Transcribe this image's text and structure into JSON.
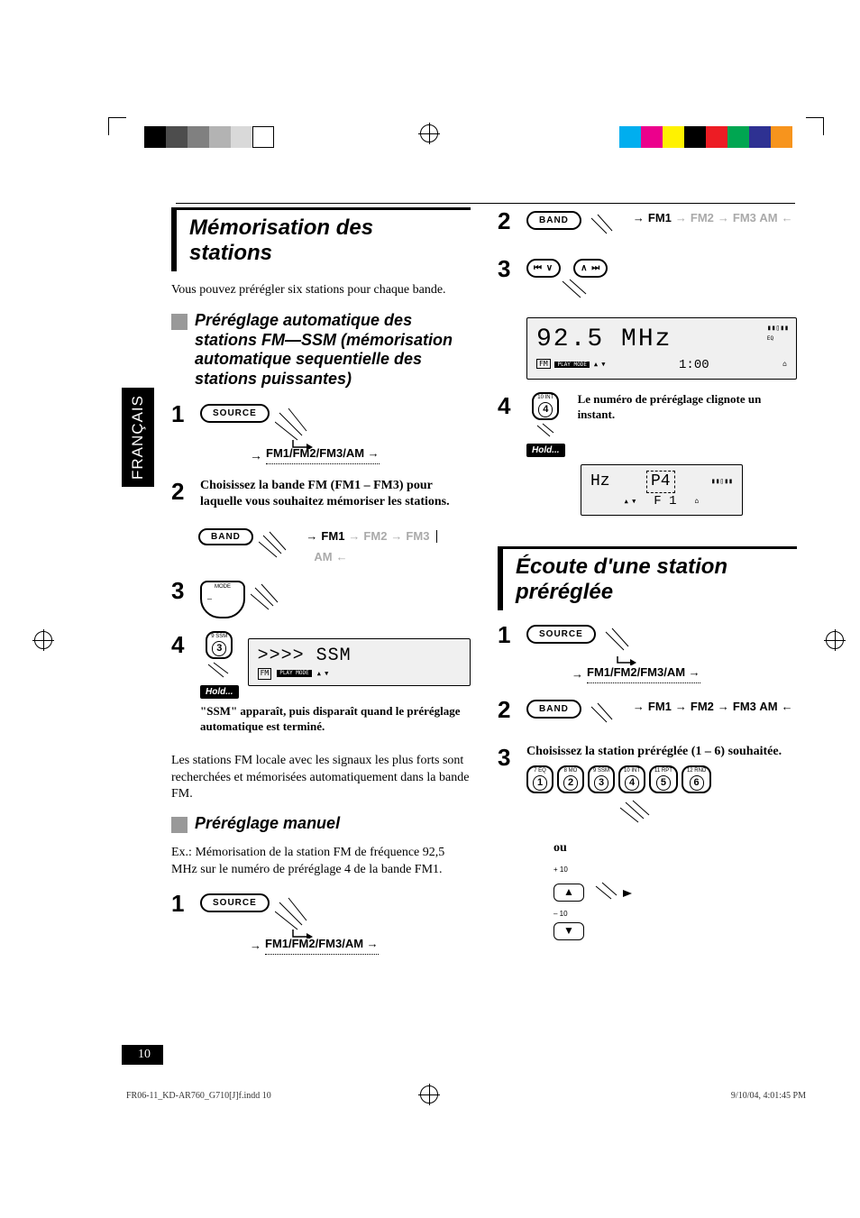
{
  "language_tab": "FRANÇAIS",
  "page_number": "10",
  "footer_left": "FR06-11_KD-AR760_G710[J]f.indd   10",
  "footer_right": "9/10/04, 4:01:45 PM",
  "color_bar_left": [
    "#000000",
    "#4d4d4d",
    "#808080",
    "#b3b3b3",
    "#d9d9d9",
    "#ffffff"
  ],
  "color_bar_right": [
    "#00aeef",
    "#ec008c",
    "#fff200",
    "#000000",
    "#ed1c24",
    "#00a651",
    "#2e3192",
    "#f7941d"
  ],
  "left": {
    "title": "Mémorisation des stations",
    "intro": "Vous pouvez prérégler six stations pour chaque bande.",
    "auto_heading": "Préréglage automatique des stations FM—SSM (mémorisation automatique sequentielle des stations puissantes)",
    "step1_button": "SOURCE",
    "step1_flow": "FM1/FM2/FM3/AM",
    "step2_text": "Choisissez la bande FM (FM1 – FM3) pour laquelle vous souhaitez mémoriser les stations.",
    "band_button": "BAND",
    "band_flow": {
      "fm1": "FM1",
      "fm2": "FM2",
      "fm3": "FM3",
      "am": "AM"
    },
    "step4_preset_sup": "9 SSM",
    "step4_preset_num": "3",
    "hold": "Hold...",
    "ssm_display": ">>>> SSM",
    "ssm_caption": "\"SSM\" apparaît, puis disparaît quand le préréglage automatique est terminé.",
    "auto_note": "Les stations FM locale avec les signaux les plus forts sont recherchées et mémorisées automatiquement dans la bande FM.",
    "manual_heading": "Préréglage manuel",
    "manual_ex_label": "Ex.:",
    "manual_ex": "Mémorisation de la station FM de fréquence 92,5 MHz sur le numéro de préréglage 4 de la bande FM1."
  },
  "right": {
    "step2_band": "BAND",
    "freq": "92.5 MHz",
    "time": "1:00",
    "step4_preset_sup": "10 INT",
    "step4_preset_num": "4",
    "step4_text": "Le numéro de préréglage clignote un instant.",
    "hold": "Hold...",
    "f1": "F 1",
    "listen_title": "Écoute d'une station préréglée",
    "source_button": "SOURCE",
    "source_flow": "FM1/FM2/FM3/AM",
    "step3_text": "Choisissez la station préréglée (1 – 6) souhaitée.",
    "presets": [
      {
        "sup": "7 EQ",
        "num": "1"
      },
      {
        "sup": "8 MO",
        "num": "2"
      },
      {
        "sup": "9 SSM",
        "num": "3"
      },
      {
        "sup": "10 INT",
        "num": "4"
      },
      {
        "sup": "11 RPT",
        "num": "5"
      },
      {
        "sup": "12 RND",
        "num": "6"
      }
    ],
    "ou": "ou",
    "vol_up": "+ 10",
    "vol_down": "– 10"
  }
}
